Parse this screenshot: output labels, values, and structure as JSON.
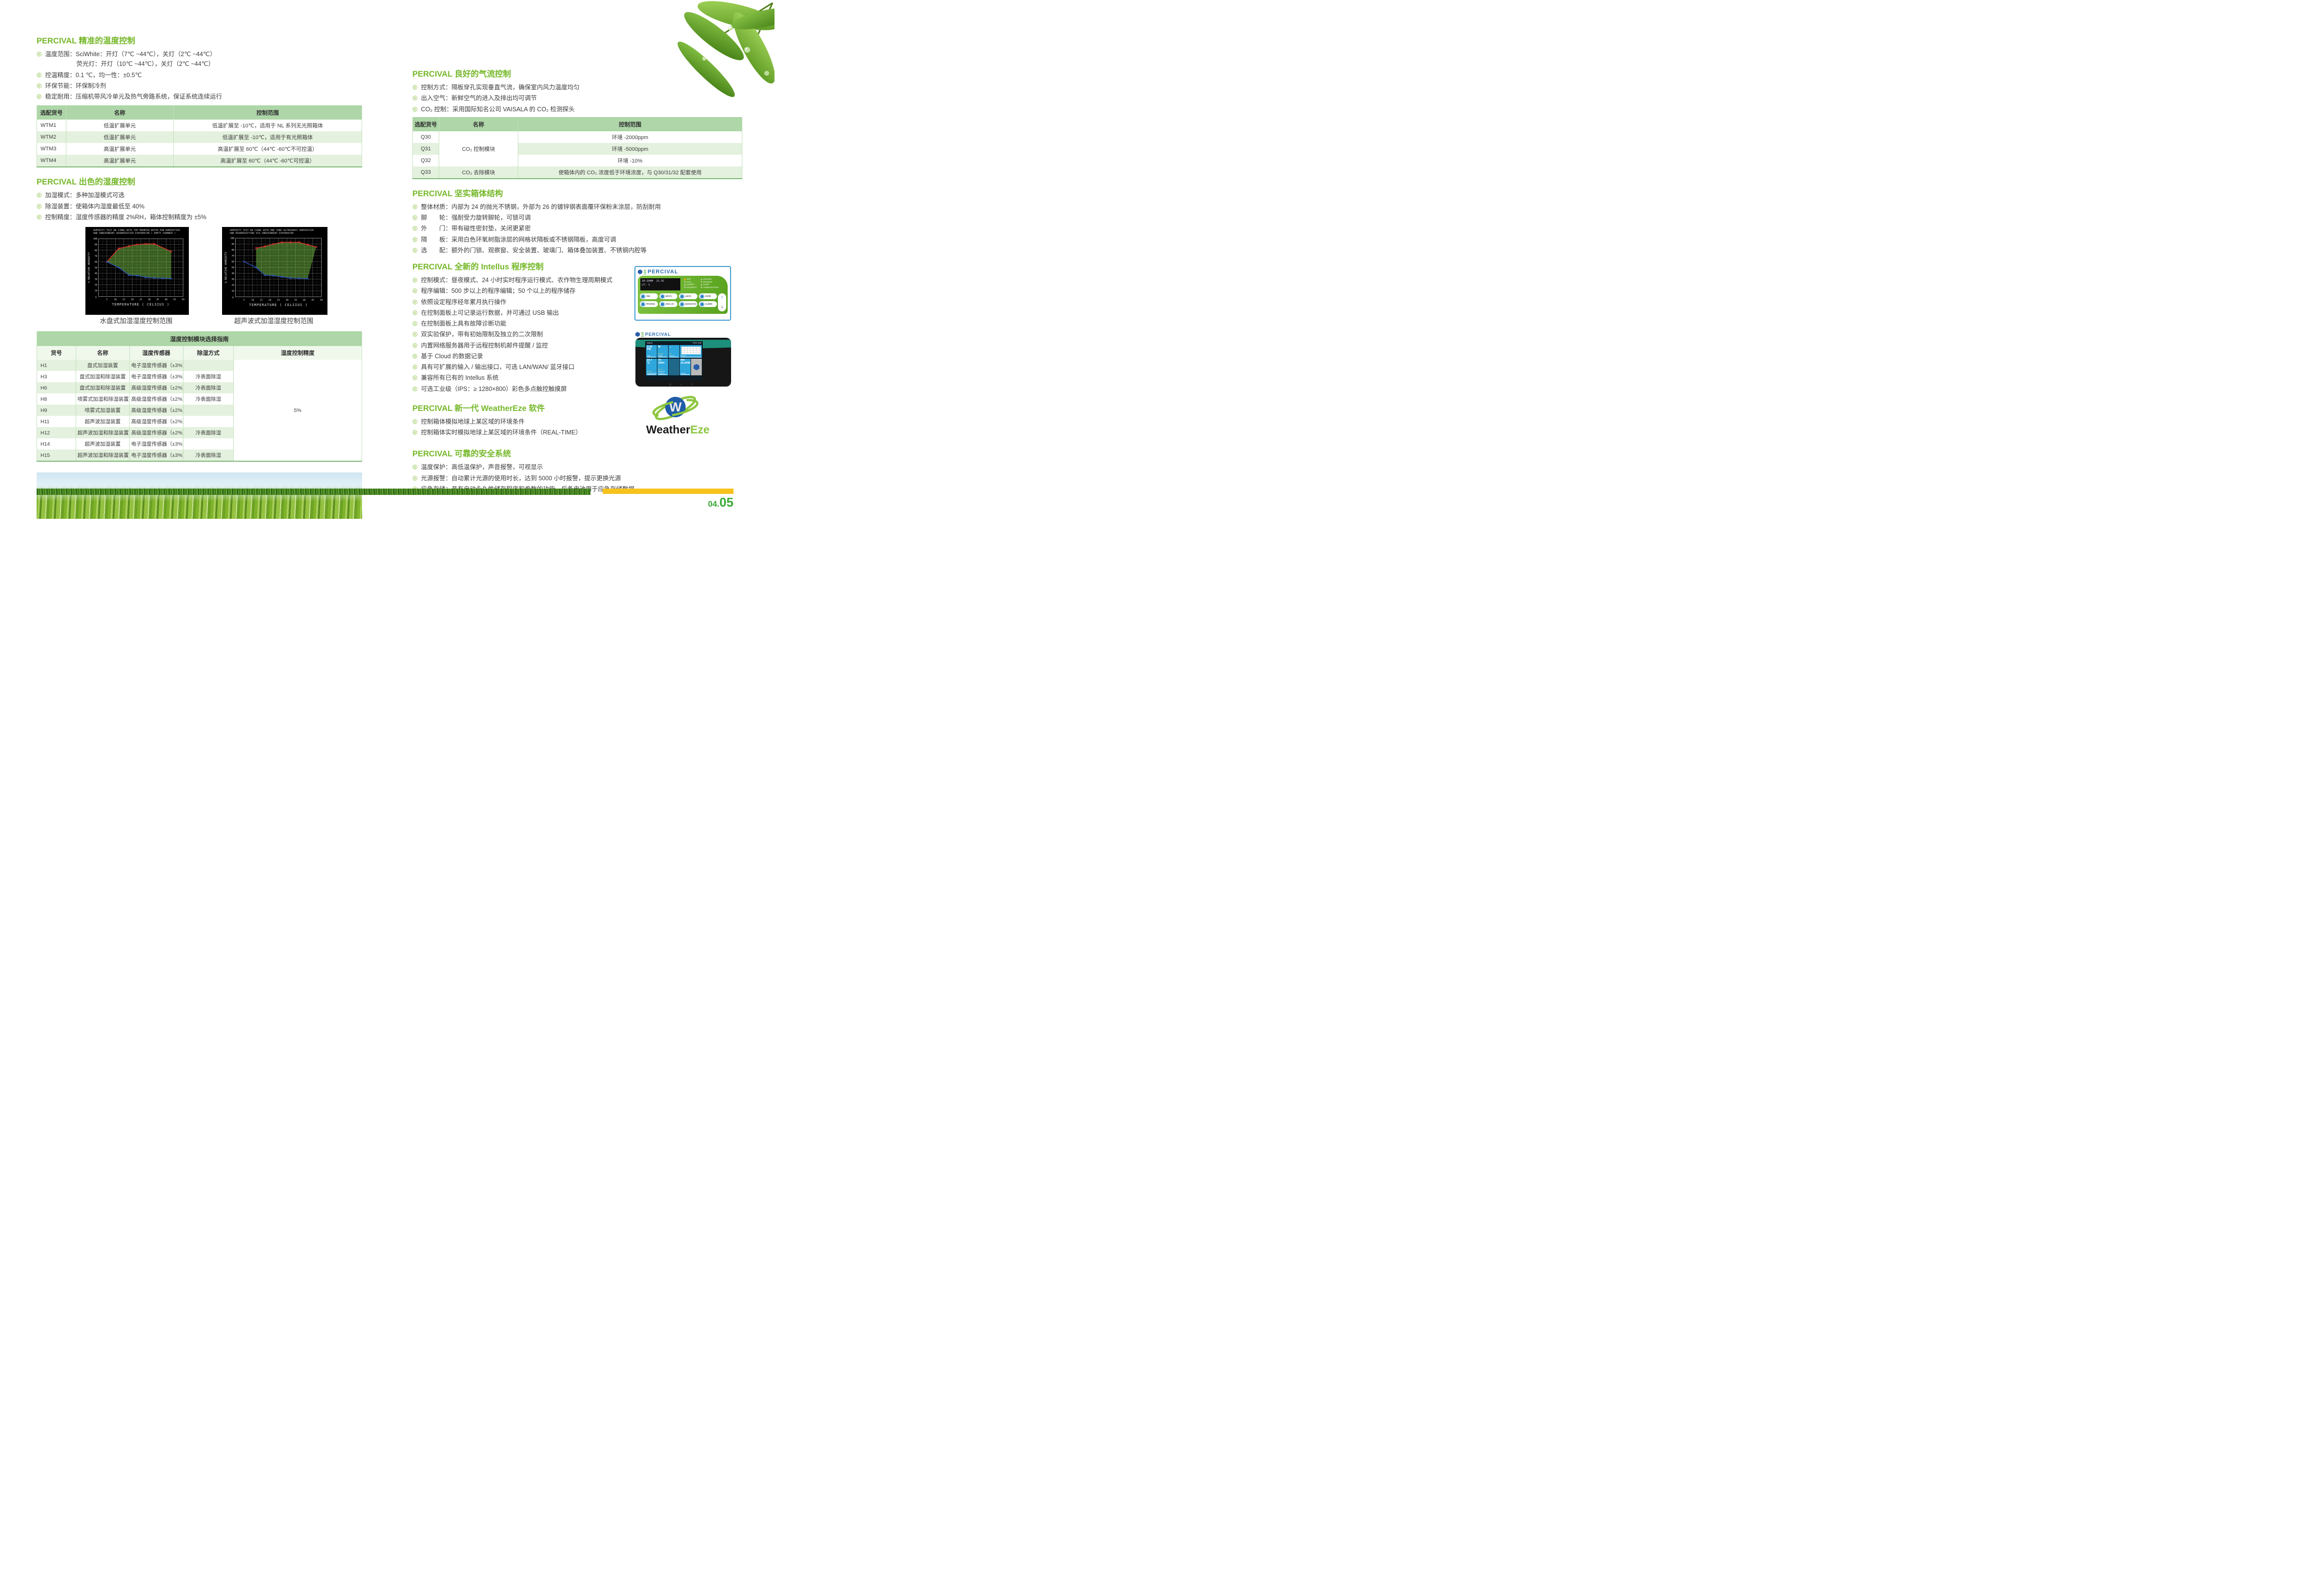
{
  "page": {
    "num_small": "04.",
    "num_big": "05"
  },
  "colors": {
    "heading_green": "#76b82a",
    "table_header": "#aed6a8",
    "row_alt": "#e4f1de",
    "yellow_bar": "#f6c21d",
    "page_number": "#3aaa35",
    "brand_blue": "#2a6db5"
  },
  "left": {
    "sec_temp": {
      "title": "PERCIVAL 精准的温度控制",
      "bullets": [
        {
          "text": "温度范围：SciWhite：开灯（7℃ ~44℃），关灯（2℃ ~44℃）",
          "cont": [
            "荧光灯：开灯（10℃ ~44℃），关灯（2℃ ~44℃）"
          ]
        },
        {
          "text": "控温精度：0.1 ℃，均一性：±0.5℃"
        },
        {
          "text": "环保节能：环保制冷剂"
        },
        {
          "text": "稳定耐用：压缩机带风冷单元及热气旁路系统，保证系统连续运行"
        }
      ]
    },
    "wtm_table": {
      "headers": [
        "选配货号",
        "名称",
        "控制范围"
      ],
      "rows": [
        [
          "WTM1",
          "低温扩展单元",
          "低温扩展至 -10℃，适用于 NL 系列无光照箱体"
        ],
        [
          "WTM2",
          "低温扩展单元",
          "低温扩展至 -10℃，适用于有光照箱体"
        ],
        [
          "WTM3",
          "高温扩展单元",
          "高温扩展至 60℃（44℃ -60℃不可控温）"
        ],
        [
          "WTM4",
          "高温扩展单元",
          "高温扩展至 60℃（44℃ -60℃可控温）"
        ]
      ]
    },
    "sec_humidity": {
      "title": "PERCIVAL 出色的湿度控制",
      "bullets": [
        {
          "text": "加湿模式：多种加湿模式可选"
        },
        {
          "text": "除湿装置：使箱体内湿度最低至 40%"
        },
        {
          "text": "控制精度：湿度传感器的精度 2%RH，箱体控制精度为 ±5%"
        }
      ]
    },
    "hum_table": {
      "title": "湿度控制模块选择指南",
      "headers": [
        "货号",
        "名称",
        "湿度传感器",
        "除湿方式",
        "湿度控制精度"
      ],
      "rows": [
        [
          "H1",
          "盘式加湿装置",
          "电子湿度传感器（±3%）",
          "",
          {
            "t": "5%",
            "rs": 9,
            "cls": "prec"
          }
        ],
        [
          "H3",
          "盘式加湿和除湿装置",
          "电子湿度传感器（±3%）",
          "冷表面除湿"
        ],
        [
          "H6",
          "盘式加湿和除湿装置",
          "高级湿度传感器（±2%）",
          "冷表面除湿"
        ],
        [
          "H8",
          "喷雾式加湿和除湿装置",
          "高级湿度传感器（±2%）",
          "冷表面除湿"
        ],
        [
          "H9",
          "喷雾式加湿装置",
          "高级湿度传感器（±2%）",
          ""
        ],
        [
          "H11",
          "超声波加湿装置",
          "高级湿度传感器（±2%）",
          ""
        ],
        [
          "H12",
          "超声波加湿和除湿装置",
          "高级湿度传感器（±2%）",
          "冷表面除湿"
        ],
        [
          "H14",
          "超声波加湿装置",
          "电子湿度传感器（±3%）",
          ""
        ],
        [
          "H15",
          "超声波加湿和除湿装置",
          "电子湿度传感器（±3%）",
          "冷表面除湿"
        ]
      ]
    }
  },
  "right": {
    "sec_airflow": {
      "title": "PERCIVAL 良好的气流控制",
      "bullets": [
        {
          "text": "控制方式：隔板穿孔实现垂直气流，确保室内风力温度均匀"
        },
        {
          "text": "出入空气：新鲜空气的进入及排出均可调节"
        },
        {
          "text": "CO₂ 控制：采用国际知名公司 VAISALA 的 CO₂ 检测探头"
        }
      ]
    },
    "q_table": {
      "headers": [
        "选配货号",
        "名称",
        "控制范围"
      ],
      "rows": [
        [
          "Q30",
          {
            "t": "CO₂ 控制模块",
            "rs": 3,
            "cls": "merge"
          },
          "环境 -2000ppm"
        ],
        [
          "Q31",
          "环境 -5000ppm"
        ],
        [
          "Q32",
          "环境 -10%"
        ],
        [
          "Q33",
          "CO₂ 去除模块",
          "使箱体内的 CO₂ 浓度低于环境浓度，与 Q30/31/32 配套使用"
        ]
      ]
    },
    "sec_structure": {
      "title": "PERCIVAL 坚实箱体结构",
      "bullets": [
        {
          "text": "整体材质：内部为 24 的抛光不锈钢，外部为 26 的镀锌钢表面覆环保粉末涂层，防刮耐用"
        },
        {
          "text": "脚　　轮：强耐受力旋转脚轮，可锁可调"
        },
        {
          "text": "外　　门：带有磁性密封垫，关闭更紧密"
        },
        {
          "text": "隔　　板：采用白色环氧树脂涂层的网格状隔板或不锈钢隔板，高度可调"
        },
        {
          "text": "选　　配：额外的门锁、观察窗、安全装置、玻璃门、箱体叠加装置、不锈钢内腔等"
        }
      ]
    },
    "sec_intellus": {
      "title": "PERCIVAL 全新的 Intellus 程序控制",
      "bullets": [
        {
          "text": "控制模式：昼夜模式、24 小时实时程序运行模式、农作物生理周期模式"
        },
        {
          "text": "程序编辑：500 步以上的程序编辑；50 个以上的程序储存"
        },
        {
          "text": "依照设定程序经年累月执行操作"
        },
        {
          "text": "在控制面板上可记录运行数据，并可通过 USB 输出"
        },
        {
          "text": "在控制面板上具有故障诊断功能"
        },
        {
          "text": "双实验保护，带有初始限制及独立的二次限制"
        },
        {
          "text": "内置网络服务器用于远程控制机邮件提醒 / 监控"
        },
        {
          "text": "基于 Cloud 的数据记录"
        },
        {
          "text": "具有可扩展的输入 / 输出接口，可选 LAN/WAN/ 蓝牙接口"
        },
        {
          "text": "兼容所有已有的 Intellus 系统"
        },
        {
          "text": "可选工业级（IPS：≥ 1280×800）彩色多点触控触摸屏"
        }
      ]
    },
    "sec_weathereze": {
      "title": "PERCIVAL 新一代 WeatherEze 软件",
      "bullets": [
        {
          "text": "控制箱体模拟地球上某区域的环境条件"
        },
        {
          "text": "控制箱体实时模拟地球上某区域的环境条件（REAL-TIME）"
        }
      ]
    },
    "sec_safety": {
      "title": "PERCIVAL 可靠的安全系统",
      "bullets": [
        {
          "text": "温度保护：高低温保护，声音报警，可视显示"
        },
        {
          "text": "光源报警：自动累计光源的使用时长，达到 5000 小时报警，提示更换光源"
        },
        {
          "text": "应急存储：具有自动永久性储存程序和参数的功能，后备电池用于应急存储数据"
        }
      ]
    }
  },
  "panel1": {
    "brand": "PERCIVAL",
    "lcd": [
      "10:10AM  21.5C",
      "LT: 1"
    ],
    "leds_left": [
      "HEAT",
      "COOL",
      "HUMIDIFY",
      "DEHUMIDIFY"
    ],
    "leds_right": [
      "AUXILIARY",
      "PROGRAM",
      "ALARM",
      "COMMUNICATIONS"
    ],
    "buttons": [
      "TIME",
      "INPUTS",
      "LIGHTS",
      "ENTER",
      "PROGRAM",
      "DATA LOG",
      "DIAGNOSTICS",
      "ALARMS"
    ]
  },
  "panel2": {
    "brand": "PERCIVAL",
    "status_left": "Status",
    "status_right": "PGC-105",
    "nav": "◁ ○ □",
    "tiles": [
      {
        "value": "3:30\nPM",
        "sub": "",
        "label": "TIME",
        "kind": "plain"
      },
      {
        "value": "M",
        "sub": "Manual",
        "label": "MODE",
        "kind": "plain"
      },
      {
        "value": "⌄",
        "sub": "Off",
        "label": "LIGHTS",
        "kind": "plain"
      },
      {
        "value": "",
        "sub": "",
        "label": "GRAPH",
        "kind": "graph"
      },
      {
        "value": "24.7\n°C",
        "sub": "SP 24.5",
        "label": "TEMPERATURE",
        "kind": "plain"
      },
      {
        "value": "70\n%RH",
        "sub": "SP 70",
        "label": "RELATIVE HUMIDITY",
        "kind": "plain"
      },
      {
        "value": "",
        "sub": "",
        "label": "",
        "kind": "blank"
      },
      {
        "value": "NO\nALARM",
        "sub": "",
        "label": "ALARM",
        "kind": "plain"
      },
      {
        "value": "",
        "sub": "",
        "label": "",
        "kind": "logo"
      }
    ]
  },
  "weathereze_logo": {
    "letter": "W",
    "word_black": "Weather",
    "word_green": "Eze"
  },
  "chart_data": [
    {
      "type": "area",
      "title_lines": [
        "HUMIDITY TEST ON I36NL WITH TOP MOUNTED WATER PAN HUMIDIFIER",
        "AND INDEPENDENT DEHUMIDIFIER EVAPORATOR ( EMPTY CHAMBER )"
      ],
      "caption": "水盘式加湿湿度控制范围",
      "xlabel": "TEMPERATURE ( CELSIUS )",
      "ylabel": "% RELATIVE HUMIDITY",
      "xlim": [
        0,
        50
      ],
      "ylim": [
        0,
        100
      ],
      "xtick_step": 5,
      "ytick_step": 10,
      "grid": "dashed+solid",
      "series": [
        {
          "name": "upper_limit",
          "color": "#e8302a",
          "points": [
            [
              5,
              60
            ],
            [
              12,
              83
            ],
            [
              18,
              87
            ],
            [
              23,
              90
            ],
            [
              28,
              91
            ],
            [
              33,
              91
            ],
            [
              43,
              78
            ]
          ]
        },
        {
          "name": "lower_limit",
          "color": "#2a56c6",
          "points": [
            [
              5,
              60
            ],
            [
              12,
              50
            ],
            [
              18,
              37
            ],
            [
              23,
              36
            ],
            [
              28,
              33
            ],
            [
              33,
              32
            ],
            [
              38,
              31.5
            ],
            [
              43,
              31
            ]
          ]
        }
      ],
      "fill_polygon": [
        [
          5,
          60
        ],
        [
          12,
          83
        ],
        [
          18,
          87
        ],
        [
          23,
          90
        ],
        [
          28,
          91
        ],
        [
          33,
          91
        ],
        [
          43,
          78
        ],
        [
          43,
          31
        ],
        [
          38,
          31.5
        ],
        [
          33,
          32
        ],
        [
          28,
          33
        ],
        [
          23,
          36
        ],
        [
          18,
          37
        ],
        [
          12,
          50
        ]
      ]
    },
    {
      "type": "area",
      "title_lines": [
        "HUMIDITY TEST ON I36NL WITH ONE TUBE ULTRASONIC HUMIDIFIER",
        "AND DEHUMIDIFYING VIA INDEPENDENT EVAPORATOR"
      ],
      "caption": "超声波式加湿湿度控制范围",
      "xlabel": "TEMPERATURE ( CELSIUS )",
      "ylabel": "% RELATIVE HUMIDITY",
      "xlim": [
        0,
        50
      ],
      "ylim": [
        0,
        100
      ],
      "xtick_step": 5,
      "ytick_step": 10,
      "grid": "dashed+solid",
      "series": [
        {
          "name": "upper_limit",
          "color": "#e8302a",
          "points": [
            [
              12,
              83
            ],
            [
              17,
              86
            ],
            [
              22,
              90
            ],
            [
              27,
              93
            ],
            [
              32,
              93
            ],
            [
              37,
              93
            ],
            [
              42,
              89
            ],
            [
              47,
              85
            ]
          ]
        },
        {
          "name": "lower_limit",
          "color": "#2a56c6",
          "points": [
            [
              5,
              60
            ],
            [
              12,
              50
            ],
            [
              17,
              37
            ],
            [
              22,
              36
            ],
            [
              27,
              34
            ],
            [
              32,
              32
            ],
            [
              37,
              31.5
            ],
            [
              42,
              31
            ]
          ]
        }
      ],
      "fill_polygon": [
        [
          12,
          83
        ],
        [
          17,
          86
        ],
        [
          22,
          90
        ],
        [
          27,
          93
        ],
        [
          32,
          93
        ],
        [
          37,
          93
        ],
        [
          42,
          89
        ],
        [
          47,
          85
        ],
        [
          42,
          31
        ],
        [
          37,
          31.5
        ],
        [
          32,
          32
        ],
        [
          27,
          34
        ],
        [
          22,
          36
        ],
        [
          17,
          37
        ],
        [
          12,
          50
        ]
      ]
    }
  ]
}
